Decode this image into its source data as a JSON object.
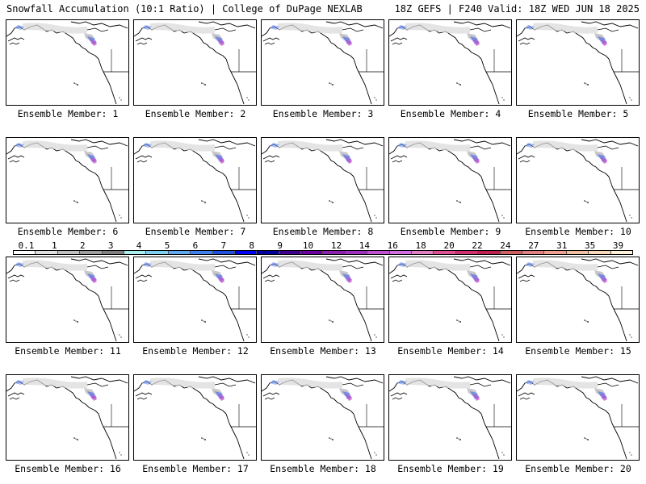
{
  "header": {
    "left_title": "Snowfall Accumulation (10:1 Ratio) | College of DuPage NEXLAB",
    "right_title": "18Z GEFS | F240 Valid: 18Z WED JUN 18 2025"
  },
  "label_prefix": "Ensemble Member: ",
  "members": [
    "1",
    "2",
    "3",
    "4",
    "5",
    "6",
    "7",
    "8",
    "9",
    "10",
    "11",
    "12",
    "13",
    "14",
    "15",
    "16",
    "17",
    "18",
    "19",
    "20"
  ],
  "colorbar": {
    "ticks": [
      "0.1",
      "1",
      "2",
      "3",
      "4",
      "5",
      "6",
      "7",
      "8",
      "9",
      "10",
      "12",
      "14",
      "16",
      "18",
      "20",
      "22",
      "24",
      "27",
      "31",
      "35",
      "39"
    ],
    "colors": [
      "#ffffff",
      "#e0e0e0",
      "#c0c0c0",
      "#a0a0a0",
      "#808080",
      "#aaf0f0",
      "#80d0f0",
      "#60a8f0",
      "#4080f0",
      "#2050e0",
      "#0000f0",
      "#0000a0",
      "#400090",
      "#6a00a0",
      "#8c20b0",
      "#a030c0",
      "#c050d0",
      "#d070e0",
      "#e080c0",
      "#e05090",
      "#d03070",
      "#c02050",
      "#d06060",
      "#e08080",
      "#f0a090",
      "#f0c0a0",
      "#f8d8b8",
      "#fff0d8"
    ]
  }
}
